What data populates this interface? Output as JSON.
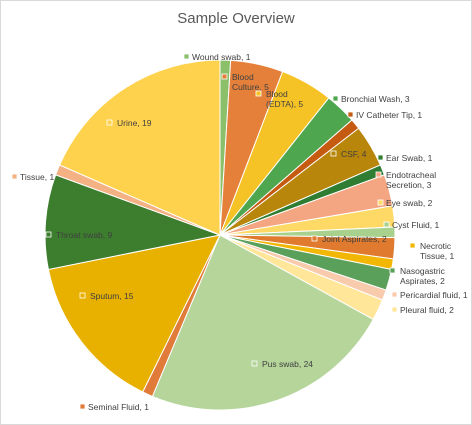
{
  "chart_data": {
    "type": "pie",
    "title": "Sample Overview",
    "slices": [
      {
        "label": "Wound swab",
        "value": 1,
        "color": "#8cbf6a"
      },
      {
        "label": "Blood Culture",
        "value": 5,
        "color": "#e5803a"
      },
      {
        "label": "Blood (EDTA)",
        "value": 5,
        "color": "#f5c325"
      },
      {
        "label": "Bronchial Wash",
        "value": 3,
        "color": "#4ea64e"
      },
      {
        "label": "IV Catheter Tip",
        "value": 1,
        "color": "#c55a11"
      },
      {
        "label": "CSF",
        "value": 4,
        "color": "#b8860b"
      },
      {
        "label": "Ear Swab",
        "value": 1,
        "color": "#2e7d32"
      },
      {
        "label": "Endotracheal Secretion",
        "value": 3,
        "color": "#f4a582"
      },
      {
        "label": "Eye swab",
        "value": 2,
        "color": "#ffd966"
      },
      {
        "label": "Cyst Fluid",
        "value": 1,
        "color": "#a9d18e"
      },
      {
        "label": "Joint Aspirates",
        "value": 2,
        "color": "#e07a2e"
      },
      {
        "label": "Necrotic Tissue",
        "value": 1,
        "color": "#f2b705"
      },
      {
        "label": "Nasogastric Aspirates",
        "value": 2,
        "color": "#5aa05a"
      },
      {
        "label": "Pericardial fluid",
        "value": 1,
        "color": "#f8cbad"
      },
      {
        "label": "Pleural fluid",
        "value": 2,
        "color": "#ffe699"
      },
      {
        "label": "Pus swab",
        "value": 24,
        "color": "#b5d59b"
      },
      {
        "label": "Seminal Fluid",
        "value": 1,
        "color": "#e07b39"
      },
      {
        "label": "Sputum",
        "value": 15,
        "color": "#e8b100"
      },
      {
        "label": "Throat swab",
        "value": 9,
        "color": "#3c7d2e"
      },
      {
        "label": "Tissue",
        "value": 1,
        "color": "#f4b183"
      },
      {
        "label": "Urine",
        "value": 19,
        "color": "#ffd24d"
      }
    ],
    "label_texts": [
      [
        "Wound swab, 1"
      ],
      [
        "Blood",
        "Culture, 5"
      ],
      [
        "Blood",
        "(EDTA), 5"
      ],
      [
        "Bronchial Wash, 3"
      ],
      [
        "IV Catheter Tip, 1"
      ],
      [
        "CSF, 4"
      ],
      [
        "Ear Swab, 1"
      ],
      [
        "Endotracheal",
        "Secretion, 3"
      ],
      [
        "Eye swab, 2"
      ],
      [
        "Cyst Fluid, 1"
      ],
      [
        "Joint Aspirates, 2"
      ],
      [
        "Necrotic",
        "Tissue, 1"
      ],
      [
        "Nasogastric",
        "Aspirates, 2"
      ],
      [
        "Pericardial fluid, 1"
      ],
      [
        "Pleural fluid, 2"
      ],
      [
        "Pus swab, 24"
      ],
      [
        "Seminal Fluid, 1"
      ],
      [
        "Sputum, 15"
      ],
      [
        "Throat swab, 9"
      ],
      [
        "Tissue, 1"
      ],
      [
        "Urine, 19"
      ]
    ],
    "legend": "none",
    "grid": false
  }
}
